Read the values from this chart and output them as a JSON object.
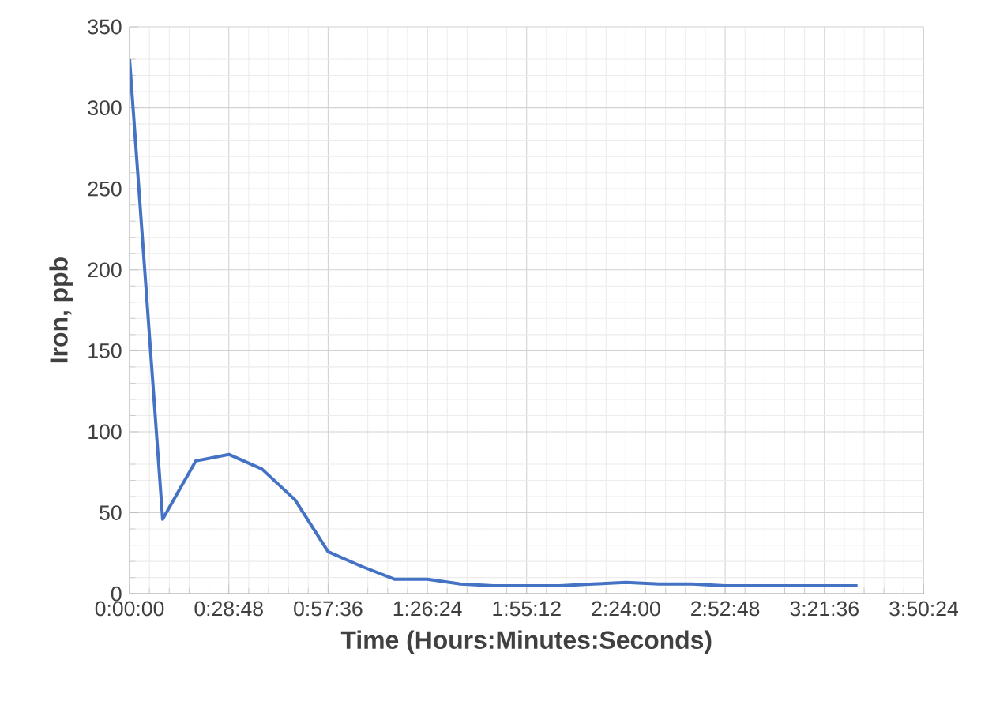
{
  "chart_data": {
    "type": "line",
    "xlabel": "Time (Hours:Minutes:Seconds)",
    "ylabel": "Iron, ppb",
    "x": [
      0,
      0.16,
      0.32,
      0.48,
      0.64,
      0.8,
      0.96,
      1.12,
      1.28,
      1.44,
      1.6,
      1.76,
      1.92,
      2.08,
      2.24,
      2.4,
      2.56,
      2.72,
      2.88,
      3.04,
      3.2,
      3.36,
      3.52
    ],
    "series": [
      {
        "color": "#4472c4",
        "values": [
          330,
          46,
          82,
          86,
          77,
          58,
          26,
          17,
          9,
          9,
          6,
          5,
          5,
          5,
          6,
          7,
          6,
          6,
          5,
          5,
          5,
          5,
          5
        ]
      }
    ],
    "xlim": [
      0,
      3.84
    ],
    "ylim": [
      0,
      350
    ],
    "xticks": [
      {
        "value": 0,
        "label": "0:00:00"
      },
      {
        "value": 0.48,
        "label": "0:28:48"
      },
      {
        "value": 0.96,
        "label": "0:57:36"
      },
      {
        "value": 1.44,
        "label": "1:26:24"
      },
      {
        "value": 1.92,
        "label": "1:55:12"
      },
      {
        "value": 2.4,
        "label": "2:24:00"
      },
      {
        "value": 2.88,
        "label": "2:52:48"
      },
      {
        "value": 3.36,
        "label": "3:21:36"
      },
      {
        "value": 3.84,
        "label": "3:50:24"
      }
    ],
    "yticks": [
      0,
      50,
      100,
      150,
      200,
      250,
      300,
      350
    ],
    "grid": true,
    "marker": "none",
    "line_style": "solid"
  }
}
